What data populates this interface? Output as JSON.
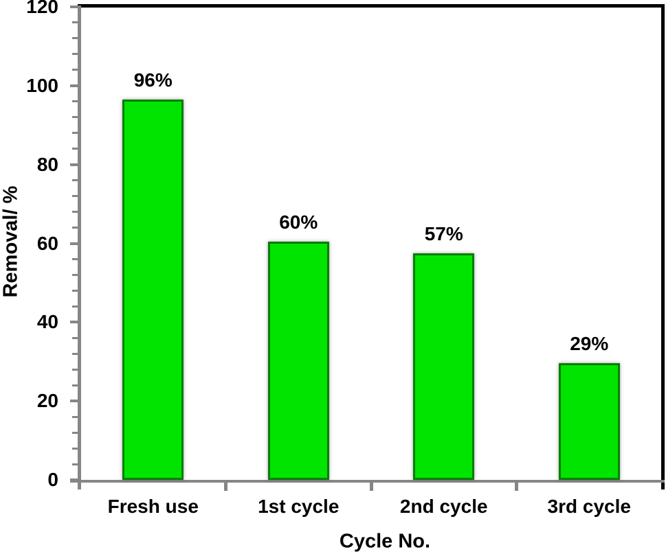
{
  "chart_data": {
    "type": "bar",
    "title": "",
    "xlabel": "Cycle No.",
    "ylabel": "Removal/ %",
    "categories": [
      "Fresh use",
      "1st cycle",
      "2nd cycle",
      "3rd cycle"
    ],
    "values": [
      96,
      60,
      57,
      29
    ],
    "data_labels": [
      "96%",
      "60%",
      "57%",
      "29%"
    ],
    "ylim": [
      0,
      120
    ],
    "y_major_unit": 20,
    "y_minor_unit": 4,
    "y_tick_labels": [
      "0",
      "20",
      "40",
      "60",
      "80",
      "100",
      "120"
    ],
    "grid": false,
    "legend": "none",
    "colors": {
      "bar_fill": "#00e400",
      "bar_border": "#097d09",
      "axis": "#868686",
      "frame": "#000000",
      "text": "#000000",
      "background": "#ffffff"
    }
  }
}
